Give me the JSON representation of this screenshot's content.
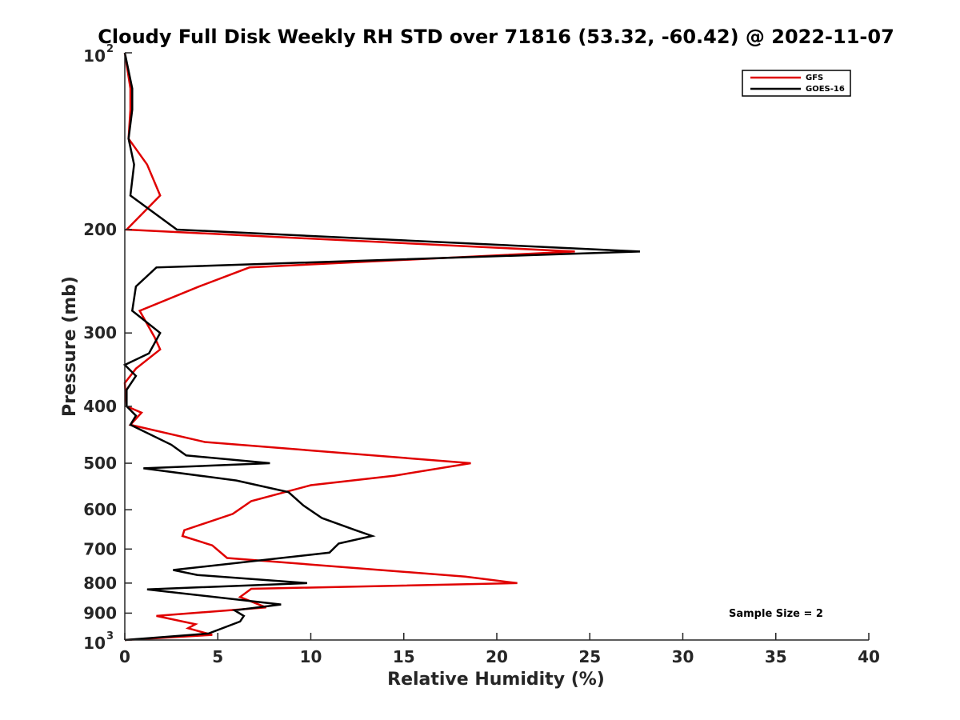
{
  "chart_data": {
    "type": "line",
    "title": "Cloudy Full Disk Weekly RH STD over 71816 (53.32, -60.42) @ 2022-11-07",
    "xlabel": "Relative Humidity (%)",
    "ylabel": "Pressure (mb)",
    "xlim": [
      0,
      40
    ],
    "ylim": [
      100,
      1000
    ],
    "y_scale": "log",
    "y_reversed": true,
    "x_ticks": [
      "0",
      "5",
      "10",
      "15",
      "20",
      "25",
      "30",
      "35",
      "40"
    ],
    "y_ticks": [
      {
        "value": 100,
        "base": "10",
        "exp": "2"
      },
      {
        "value": 200,
        "label": "200"
      },
      {
        "value": 300,
        "label": "300"
      },
      {
        "value": 400,
        "label": "400"
      },
      {
        "value": 500,
        "label": "500"
      },
      {
        "value": 600,
        "label": "600"
      },
      {
        "value": 700,
        "label": "700"
      },
      {
        "value": 800,
        "label": "800"
      },
      {
        "value": 900,
        "label": "900"
      },
      {
        "value": 1000,
        "base": "10",
        "exp": "3"
      }
    ],
    "legend_position": "top-right",
    "annotation": "Sample Size = 2",
    "series": [
      {
        "name": "GFS",
        "color": "#e00000",
        "points": [
          [
            0.0,
            100
          ],
          [
            0.3,
            115
          ],
          [
            0.3,
            125
          ],
          [
            0.2,
            140
          ],
          [
            1.2,
            155
          ],
          [
            1.9,
            175
          ],
          [
            0.1,
            200
          ],
          [
            24.2,
            218
          ],
          [
            6.7,
            232
          ],
          [
            4.0,
            250
          ],
          [
            0.8,
            275
          ],
          [
            1.6,
            305
          ],
          [
            1.9,
            320
          ],
          [
            0.6,
            345
          ],
          [
            0.0,
            365
          ],
          [
            0.1,
            400
          ],
          [
            0.9,
            410
          ],
          [
            0.3,
            430
          ],
          [
            4.3,
            460
          ],
          [
            18.6,
            500
          ],
          [
            14.5,
            525
          ],
          [
            10.0,
            545
          ],
          [
            6.8,
            580
          ],
          [
            5.8,
            610
          ],
          [
            3.2,
            650
          ],
          [
            3.1,
            665
          ],
          [
            4.7,
            690
          ],
          [
            5.5,
            725
          ],
          [
            18.3,
            780
          ],
          [
            21.1,
            800
          ],
          [
            6.8,
            818
          ],
          [
            6.2,
            845
          ],
          [
            7.6,
            880
          ],
          [
            1.7,
            910
          ],
          [
            3.8,
            940
          ],
          [
            3.4,
            955
          ],
          [
            4.7,
            980
          ],
          [
            0.0,
            1000
          ]
        ]
      },
      {
        "name": "GOES-16",
        "color": "#000000",
        "points": [
          [
            0.0,
            100
          ],
          [
            0.4,
            115
          ],
          [
            0.4,
            125
          ],
          [
            0.2,
            140
          ],
          [
            0.5,
            155
          ],
          [
            0.3,
            175
          ],
          [
            2.8,
            200
          ],
          [
            27.7,
            218
          ],
          [
            1.7,
            232
          ],
          [
            0.6,
            250
          ],
          [
            0.4,
            275
          ],
          [
            1.9,
            300
          ],
          [
            1.3,
            325
          ],
          [
            0.0,
            340
          ],
          [
            0.6,
            355
          ],
          [
            0.1,
            375
          ],
          [
            0.1,
            400
          ],
          [
            0.6,
            415
          ],
          [
            0.3,
            430
          ],
          [
            2.5,
            465
          ],
          [
            3.3,
            485
          ],
          [
            7.8,
            500
          ],
          [
            1.0,
            510
          ],
          [
            6.0,
            535
          ],
          [
            8.8,
            560
          ],
          [
            9.6,
            590
          ],
          [
            10.6,
            620
          ],
          [
            12.4,
            650
          ],
          [
            13.3,
            665
          ],
          [
            11.5,
            685
          ],
          [
            11.0,
            710
          ],
          [
            2.6,
            760
          ],
          [
            3.9,
            775
          ],
          [
            9.8,
            800
          ],
          [
            1.2,
            820
          ],
          [
            8.4,
            870
          ],
          [
            5.9,
            890
          ],
          [
            6.4,
            910
          ],
          [
            6.2,
            930
          ],
          [
            4.5,
            975
          ],
          [
            0.0,
            1000
          ]
        ]
      }
    ]
  }
}
